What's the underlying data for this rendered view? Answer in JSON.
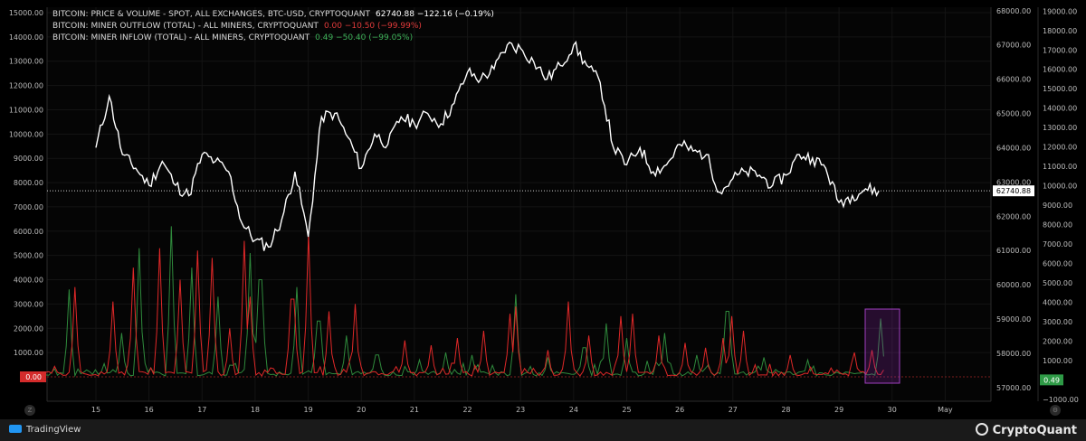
{
  "legend": {
    "price_name": "BITCOIN: PRICE & VOLUME - SPOT, ALL EXCHANGES, BTC-USD, CRYPTOQUANT",
    "price_values": "62740.88  −122.16 (−0.19%)",
    "outflow_name": "BITCOIN: MINER OUTFLOW (TOTAL) - ALL MINERS, CRYPTOQUANT",
    "outflow_values": "0.00  −10.50 (−99.99%)",
    "inflow_name": "BITCOIN: MINER INFLOW (TOTAL) - ALL MINERS, CRYPTOQUANT",
    "inflow_values": "0.49  −50.40 (−99.05%)"
  },
  "left_axis_labels": [
    "15000.00",
    "14000.00",
    "13000.00",
    "12000.00",
    "11000.00",
    "10000.00",
    "9000.00",
    "8000.00",
    "7000.00",
    "6000.00",
    "5000.00",
    "4000.00",
    "3000.00",
    "2000.00",
    "1000.00"
  ],
  "price_axis_labels": [
    "68000.00",
    "67000.00",
    "66000.00",
    "65000.00",
    "64000.00",
    "63000.00",
    "62000.00",
    "61000.00",
    "60000.00",
    "59000.00",
    "58000.00",
    "57000.00"
  ],
  "far_right_axis_labels": [
    "19000.00",
    "18000.00",
    "17000.00",
    "16000.00",
    "15000.00",
    "14000.00",
    "13000.00",
    "12000.00",
    "11000.00",
    "10000.00",
    "9000.00",
    "8000.00",
    "7000.00",
    "6000.00",
    "5000.00",
    "4000.00",
    "3000.00",
    "2000.00",
    "1000.00",
    "−1000.00"
  ],
  "x_axis_labels": [
    "15",
    "16",
    "17",
    "18",
    "19",
    "20",
    "21",
    "22",
    "23",
    "24",
    "25",
    "26",
    "27",
    "28",
    "29",
    "30",
    "May"
  ],
  "tags": {
    "price": "62740.88",
    "outflow": "0.00",
    "inflow": "0.49"
  },
  "footer": {
    "tradingview": "TradingView",
    "cryptoquant": "CryptoQuant"
  },
  "corner": {
    "left": "Z",
    "right": "⚙"
  },
  "colors": {
    "price": "#ffffff",
    "outflow": "#e02828",
    "inflow": "#2f8a3c",
    "highlight": "#a040c0",
    "grid": "#141414"
  },
  "chart_data": {
    "type": "line",
    "price_series": {
      "x": [
        "15",
        "15.25",
        "15.5",
        "15.75",
        "16",
        "16.25",
        "16.5",
        "16.75",
        "17",
        "17.25",
        "17.5",
        "17.75",
        "18",
        "18.25",
        "18.5",
        "18.75",
        "19",
        "19.25",
        "19.5",
        "19.75",
        "20",
        "20.25",
        "20.5",
        "20.75",
        "21",
        "21.25",
        "21.5",
        "21.75",
        "22",
        "22.25",
        "22.5",
        "22.75",
        "23",
        "23.25",
        "23.5",
        "23.75",
        "24",
        "24.25",
        "24.5",
        "24.75",
        "25",
        "25.25",
        "25.5",
        "25.75",
        "26",
        "26.25",
        "26.5",
        "26.75",
        "27",
        "27.25",
        "27.5",
        "27.75",
        "28",
        "28.25",
        "28.5",
        "28.75",
        "29",
        "29.25",
        "29.5",
        "29.75"
      ],
      "values": [
        64000,
        65500,
        63800,
        63400,
        62900,
        63600,
        62900,
        62600,
        63800,
        63600,
        63300,
        61800,
        61300,
        61100,
        61900,
        63300,
        61400,
        64900,
        65000,
        64300,
        63400,
        64400,
        64100,
        64900,
        64700,
        65000,
        64700,
        65300,
        66200,
        66000,
        66300,
        67000,
        66900,
        66500,
        66000,
        66400,
        67000,
        66400,
        65900,
        64000,
        63500,
        64000,
        63300,
        63500,
        64100,
        63900,
        63800,
        62700,
        63100,
        63300,
        63200,
        62900,
        63200,
        63800,
        63700,
        63400,
        62400,
        62600,
        62800,
        62740.88
      ],
      "ylim": [
        56600,
        68100
      ]
    },
    "outflow_series": {
      "name": "MINER OUTFLOW (TOTAL)",
      "last": 0.0
    },
    "inflow_series": {
      "name": "MINER INFLOW (TOTAL)",
      "last": 0.49
    },
    "flow_ylim": [
      -1100,
      19200
    ],
    "outflow_spikes": [
      [
        14.6,
        3700
      ],
      [
        15.3,
        3100
      ],
      [
        15.7,
        4500
      ],
      [
        16.2,
        5300
      ],
      [
        16.6,
        4000
      ],
      [
        16.9,
        5200
      ],
      [
        17.2,
        4900
      ],
      [
        17.5,
        2000
      ],
      [
        17.8,
        5600
      ],
      [
        17.9,
        3300
      ],
      [
        18.7,
        3200
      ],
      [
        19.0,
        5900
      ],
      [
        19.4,
        2700
      ],
      [
        19.9,
        3000
      ],
      [
        20.8,
        1500
      ],
      [
        21.3,
        1300
      ],
      [
        21.8,
        1600
      ],
      [
        22.3,
        1900
      ],
      [
        22.8,
        2600
      ],
      [
        22.9,
        2900
      ],
      [
        23.5,
        1100
      ],
      [
        23.9,
        3100
      ],
      [
        24.3,
        1700
      ],
      [
        24.9,
        2500
      ],
      [
        25.1,
        2600
      ],
      [
        25.6,
        1700
      ],
      [
        26.1,
        1400
      ],
      [
        26.5,
        1200
      ],
      [
        26.8,
        1600
      ],
      [
        27.0,
        2500
      ],
      [
        27.2,
        1900
      ],
      [
        28.1,
        900
      ],
      [
        29.3,
        1000
      ],
      [
        29.6,
        1100
      ]
    ],
    "inflow_spikes": [
      [
        14.5,
        3600
      ],
      [
        15.5,
        1800
      ],
      [
        15.8,
        5300
      ],
      [
        16.4,
        6200
      ],
      [
        16.8,
        4500
      ],
      [
        17.3,
        3300
      ],
      [
        17.9,
        5100
      ],
      [
        18.1,
        4000
      ],
      [
        18.8,
        3700
      ],
      [
        19.2,
        2300
      ],
      [
        19.7,
        1700
      ],
      [
        20.3,
        900
      ],
      [
        21.1,
        700
      ],
      [
        21.6,
        1000
      ],
      [
        22.1,
        900
      ],
      [
        22.9,
        3400
      ],
      [
        23.5,
        800
      ],
      [
        24.2,
        1200
      ],
      [
        24.6,
        2200
      ],
      [
        25.0,
        1600
      ],
      [
        25.7,
        1800
      ],
      [
        26.3,
        900
      ],
      [
        26.9,
        2700
      ],
      [
        27.6,
        800
      ],
      [
        28.4,
        700
      ],
      [
        29.8,
        2400
      ]
    ]
  }
}
